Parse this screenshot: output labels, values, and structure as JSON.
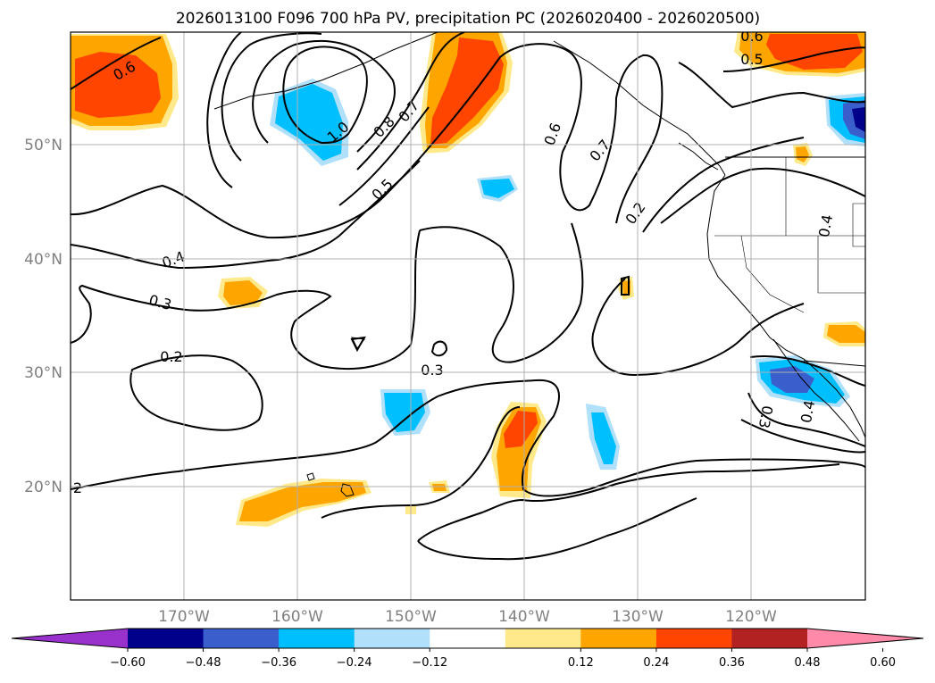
{
  "title": "2026013100 F096 700 hPa PV, precipitation PC (2026020400 - 2026020500)",
  "map": {
    "lon_range": [
      -180,
      -110
    ],
    "lat_range": [
      10,
      60
    ],
    "gridlines": true,
    "lat_labels": [
      "50°N",
      "40°N",
      "30°N",
      "20°N"
    ],
    "lon_labels": [
      "170°W",
      "160°W",
      "150°W",
      "140°W",
      "130°W",
      "120°W"
    ],
    "contour_labels": [
      "0.6",
      "1.0",
      "0.8",
      "0.7",
      "0.5",
      "0.6",
      "0.7",
      "0.2",
      "0.4",
      "0.4",
      "0.3",
      "0.2",
      "0.3",
      "2",
      "0.6",
      "0.5",
      "0.3",
      "0.4"
    ]
  },
  "colorbar": {
    "ticks": [
      "−0.60",
      "−0.48",
      "−0.36",
      "−0.24",
      "−0.12",
      "0.12",
      "0.24",
      "0.36",
      "0.48",
      "0.60"
    ],
    "colors": [
      "#9932cc",
      "#00008b",
      "#3a5fcd",
      "#00bfff",
      "#b0e0fa",
      "#ffffff",
      "#ffe98a",
      "#ffa500",
      "#ff4500",
      "#b22222",
      "#ff89a9"
    ]
  }
}
